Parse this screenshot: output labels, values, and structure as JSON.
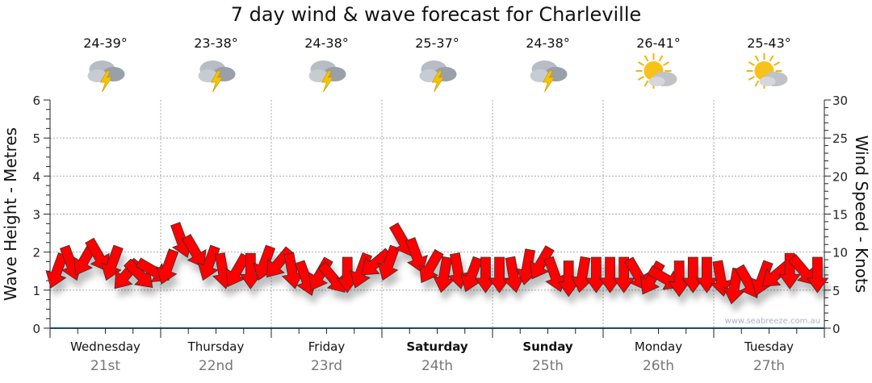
{
  "title": "7 day wind & wave forecast for Charleville",
  "watermark": "www.seabreeze.com.au",
  "colors": {
    "arrow": "#ff0000",
    "arrow_stroke": "#333333",
    "grid": "#aaaaaa",
    "axis": "#1a4a6e"
  },
  "days": [
    {
      "name": "Wednesday",
      "date": "21st",
      "temp": "24-39°",
      "icon": "thunderstorm-icon",
      "bold": false
    },
    {
      "name": "Thursday",
      "date": "22nd",
      "temp": "23-38°",
      "icon": "thunderstorm-icon",
      "bold": false
    },
    {
      "name": "Friday",
      "date": "23rd",
      "temp": "24-38°",
      "icon": "thunderstorm-icon",
      "bold": false
    },
    {
      "name": "Saturday",
      "date": "24th",
      "temp": "25-37°",
      "icon": "thunderstorm-icon",
      "bold": true
    },
    {
      "name": "Sunday",
      "date": "25th",
      "temp": "24-38°",
      "icon": "thunderstorm-icon",
      "bold": true
    },
    {
      "name": "Monday",
      "date": "26th",
      "temp": "26-41°",
      "icon": "sun-cloud-icon",
      "bold": false
    },
    {
      "name": "Tuesday",
      "date": "27th",
      "temp": "25-43°",
      "icon": "sun-cloud-icon",
      "bold": false
    }
  ],
  "chart_data": {
    "type": "scatter",
    "title": "7 day wind & wave forecast for Charleville",
    "ylabel_left": "Wave Height - Metres",
    "ylabel_right": "Wind Speed - Knots",
    "ylim_left": [
      0,
      6
    ],
    "ylim_right": [
      0,
      30
    ],
    "yticks_left": [
      "0",
      "1",
      "2",
      "3",
      "4",
      "5",
      "6"
    ],
    "yticks_right": [
      "0",
      "5",
      "10",
      "15",
      "20",
      "25",
      "30"
    ],
    "grid": true,
    "x_interval_hours": 3,
    "wind_speed_knots": [
      7.5,
      8.5,
      9,
      9.5,
      8.5,
      7,
      7,
      7.5,
      8,
      11.5,
      10,
      8.5,
      7.5,
      7.5,
      7.5,
      8.5,
      8.5,
      7.5,
      6.5,
      7,
      6.5,
      7,
      7.5,
      8.5,
      8.5,
      11.5,
      9.5,
      8,
      7,
      7.5,
      7,
      7,
      7,
      7,
      8,
      8.5,
      7,
      6.5,
      7,
      7,
      7,
      7,
      7,
      6.5,
      6.5,
      6.5,
      7,
      7,
      6.5,
      5.5,
      6,
      6.5,
      7,
      7.5,
      7.5,
      7
    ],
    "arrow_direction_deg": [
      200,
      160,
      210,
      150,
      200,
      220,
      135,
      120,
      200,
      160,
      150,
      200,
      170,
      210,
      180,
      200,
      220,
      170,
      160,
      210,
      140,
      180,
      200,
      230,
      200,
      150,
      160,
      210,
      190,
      170,
      200,
      180,
      180,
      170,
      190,
      210,
      160,
      180,
      190,
      180,
      180,
      180,
      150,
      210,
      120,
      180,
      180,
      180,
      170,
      190,
      150,
      200,
      230,
      180,
      140,
      180
    ]
  }
}
